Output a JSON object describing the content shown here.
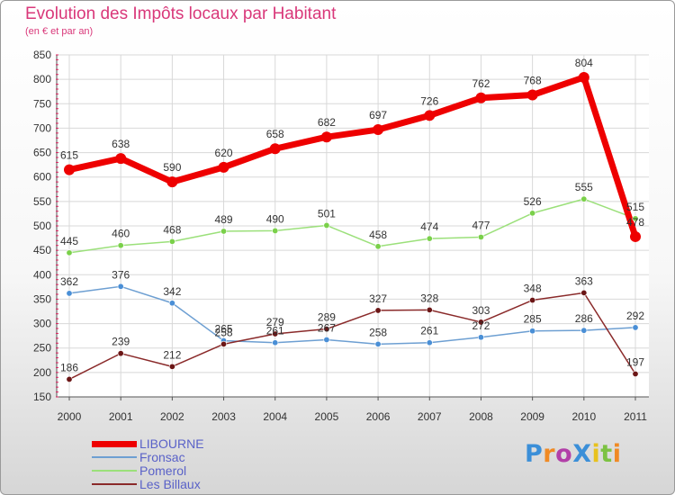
{
  "title": "Evolution des Impôts locaux par Habitant",
  "subtitle": "(en € et par an)",
  "logo": {
    "text": "ProXiti",
    "colors": [
      "#3b8fd8",
      "#f08a24",
      "#b23fa8",
      "#3b8fd8",
      "#e8c21e",
      "#7cc242",
      "#f08a24"
    ]
  },
  "colors": {
    "title": "#d9387a",
    "legend_text": "#5a62c8",
    "grid": "#d8d8d8",
    "axis_tick_mark": "#e02060"
  },
  "chart_data": {
    "type": "line",
    "title": "Evolution des Impôts locaux par Habitant",
    "subtitle": "(en € et par an)",
    "xlabel": "",
    "ylabel": "",
    "x": [
      "2000",
      "2001",
      "2002",
      "2003",
      "2004",
      "2005",
      "2006",
      "2007",
      "2008",
      "2009",
      "2010",
      "2011"
    ],
    "y_ticks": [
      150,
      200,
      250,
      300,
      350,
      400,
      450,
      500,
      550,
      600,
      650,
      700,
      750,
      800,
      850
    ],
    "ylim": [
      150,
      850
    ],
    "grid": true,
    "legend_position": "bottom-left",
    "series": [
      {
        "name": "LIBOURNE",
        "values": [
          615,
          638,
          590,
          620,
          658,
          682,
          697,
          726,
          762,
          768,
          804,
          478
        ],
        "labels": [
          "615",
          "638",
          "590",
          "620",
          "658",
          "682",
          "697",
          "726",
          "762",
          "768",
          "804",
          "478"
        ],
        "color": "#ee0000",
        "marker": "#ee0000",
        "width": 7,
        "marker_r": 6
      },
      {
        "name": "Fronsac",
        "values": [
          362,
          376,
          342,
          265,
          261,
          267,
          258,
          261,
          272,
          285,
          286,
          292
        ],
        "labels": [
          "362",
          "376",
          "342",
          "265",
          "261",
          "267",
          "258",
          "261",
          "272",
          "285",
          "286",
          "292"
        ],
        "color": "#6d9fd2",
        "marker": "#4a8fd6",
        "width": 1.5,
        "marker_r": 3.2
      },
      {
        "name": "Pomerol",
        "values": [
          445,
          460,
          468,
          489,
          490,
          501,
          458,
          474,
          477,
          526,
          555,
          515
        ],
        "labels": [
          "445",
          "460",
          "468",
          "489",
          "490",
          "501",
          "458",
          "474",
          "477",
          "526",
          "555",
          "515"
        ],
        "color": "#9be07a",
        "marker": "#7ad04a",
        "width": 1.5,
        "marker_r": 3.2
      },
      {
        "name": "Les Billaux",
        "values": [
          186,
          239,
          212,
          258,
          279,
          289,
          327,
          328,
          303,
          348,
          363,
          197
        ],
        "labels": [
          "186",
          "239",
          "212",
          "258",
          "279",
          "289",
          "327",
          "328",
          "303",
          "348",
          "363",
          "197"
        ],
        "color": "#8a2a2a",
        "marker": "#6b1616",
        "width": 1.5,
        "marker_r": 3.2
      }
    ]
  }
}
